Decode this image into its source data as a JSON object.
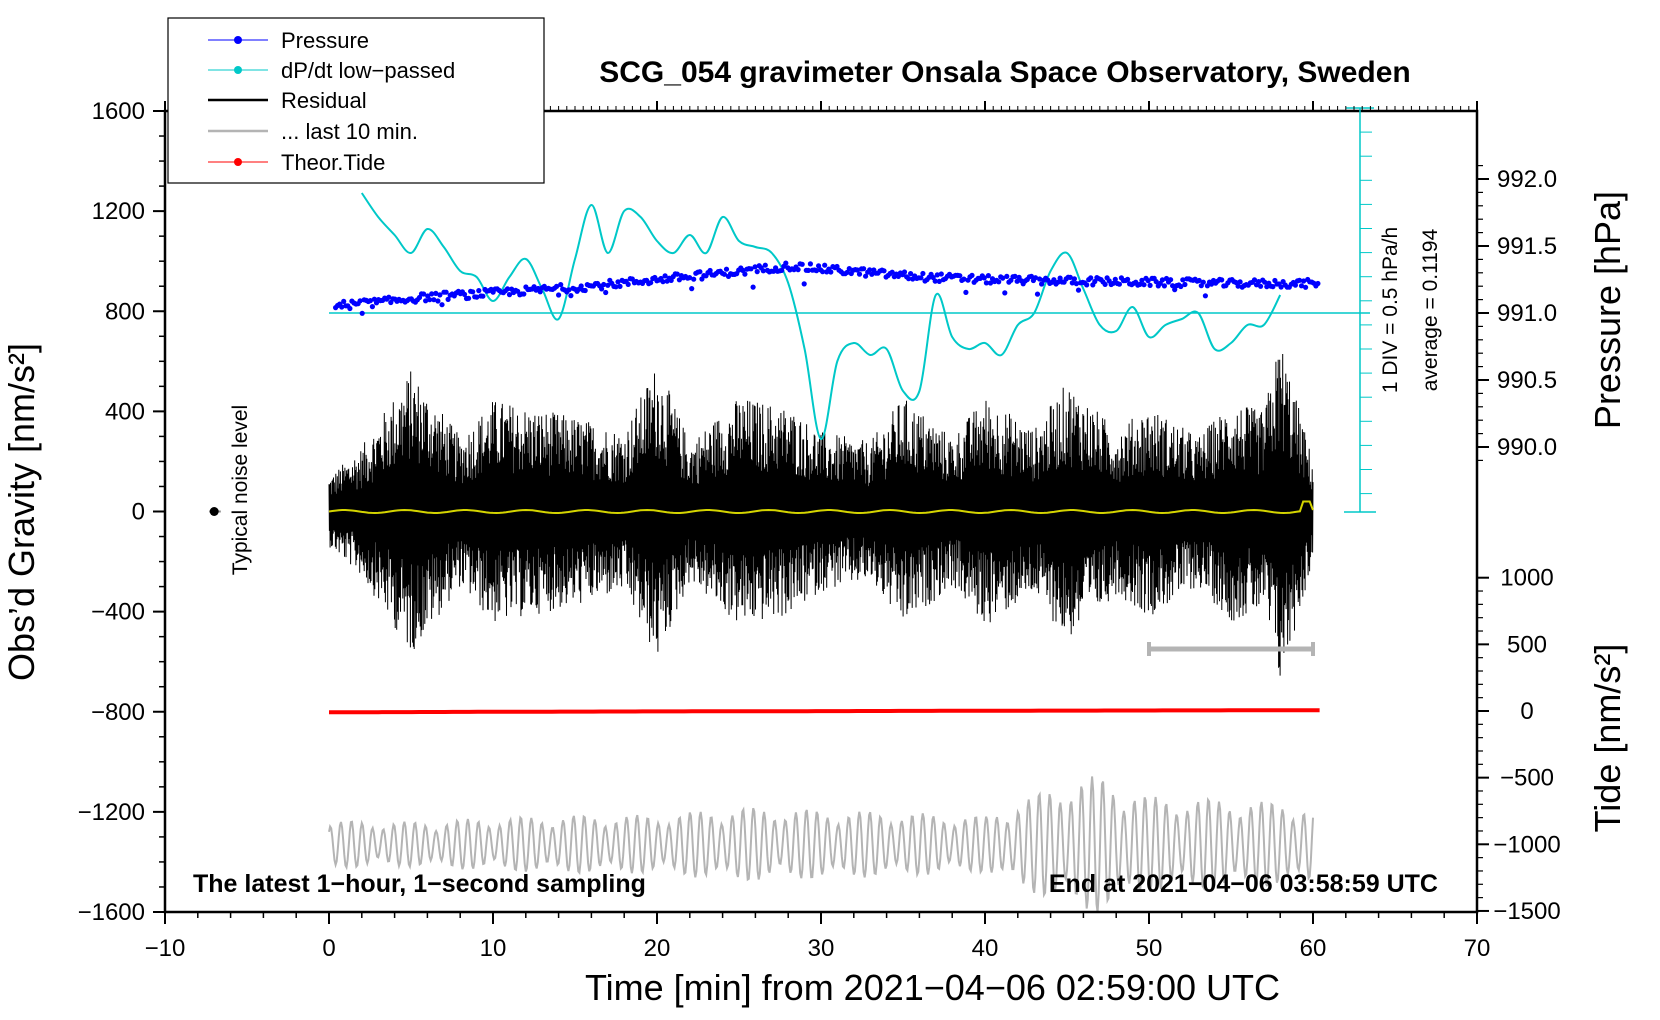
{
  "chart_data": {
    "type": "line",
    "title": "SCG_054 gravimeter Onsala Space Observatory, Sweden",
    "xlabel": "Time [min] from 2021−04−06 02:59:00 UTC",
    "ylabel_left": "Obs’d Gravity [nm/s²]",
    "ylabel_pressure": "Pressure [hPa]",
    "ylabel_tide": "Tide [nm/s²]",
    "xlim": [
      -10,
      70
    ],
    "ylim_left": [
      -1600,
      1600
    ],
    "x_ticks": [
      "−10",
      "0",
      "10",
      "20",
      "30",
      "40",
      "50",
      "60",
      "70"
    ],
    "y_left_ticks": [
      "1600",
      "1200",
      "800",
      "400",
      "0",
      "−400",
      "−800",
      "−1200",
      "−1600"
    ],
    "pressure_ticks": [
      "992.0",
      "991.5",
      "991.0",
      "990.5",
      "990.0"
    ],
    "tide_ticks": [
      "1000",
      "500",
      "0",
      "−500",
      "−1000",
      "−1500"
    ],
    "legend": [
      "Pressure",
      "dP/dt low−passed",
      "Residual",
      "... last 10 min.",
      "Theor.Tide"
    ],
    "notes": {
      "sampling": "The latest 1−hour, 1−second sampling",
      "end_time": "End at 2021−04−06 03:58:59 UTC",
      "noise": "Typical noise level",
      "div": "1 DIV = 0.5 hPa/h",
      "average": "average = 0.1194"
    },
    "series": [
      {
        "name": "Pressure",
        "unit": "hPa",
        "color": "#0000ff",
        "x": [
          0,
          3,
          6,
          10,
          15,
          20,
          25,
          28,
          30,
          33,
          36,
          40,
          45,
          50,
          55,
          60
        ],
        "values": [
          991.05,
          991.08,
          991.12,
          991.15,
          991.19,
          991.25,
          991.31,
          991.35,
          991.33,
          991.3,
          991.27,
          991.25,
          991.24,
          991.23,
          991.22,
          991.22
        ]
      },
      {
        "name": "dP/dt low−passed",
        "unit": "DIV (0.5 hPa/h)",
        "color": "#00c8c8",
        "baseline": 0,
        "x": [
          2,
          3,
          4,
          5,
          6,
          7,
          8,
          9,
          10,
          11,
          12,
          13,
          14,
          15,
          16,
          17,
          18,
          19,
          20,
          21,
          22,
          23,
          24,
          25,
          26,
          27,
          28,
          29,
          30,
          31,
          32,
          33,
          34,
          35,
          36,
          37,
          38,
          39,
          40,
          41,
          42,
          43,
          44,
          45,
          46,
          47,
          48,
          49,
          50,
          51,
          52,
          53,
          54,
          55,
          56,
          57,
          58
        ],
        "values": [
          2.0,
          1.6,
          1.3,
          1.0,
          1.4,
          1.1,
          0.7,
          0.6,
          0.2,
          0.6,
          0.9,
          0.4,
          -0.1,
          0.9,
          1.8,
          1.0,
          1.7,
          1.6,
          1.2,
          1.0,
          1.3,
          1.0,
          1.6,
          1.2,
          1.1,
          1.0,
          0.5,
          -0.6,
          -2.1,
          -0.8,
          -0.5,
          -0.7,
          -0.6,
          -1.3,
          -1.3,
          0.3,
          -0.4,
          -0.6,
          -0.5,
          -0.7,
          -0.2,
          0.0,
          0.7,
          1.0,
          0.4,
          -0.2,
          -0.3,
          0.1,
          -0.4,
          -0.2,
          -0.1,
          0.0,
          -0.6,
          -0.5,
          -0.2,
          -0.2,
          0.3
        ]
      },
      {
        "name": "Residual",
        "unit": "nm/s²",
        "color": "#000000",
        "x": [
          0,
          2,
          5,
          8,
          10,
          12,
          15,
          18,
          20,
          22,
          25,
          28,
          30,
          33,
          35,
          38,
          40,
          43,
          45,
          48,
          50,
          53,
          55,
          57,
          58,
          60
        ],
        "envelope": [
          140,
          260,
          570,
          300,
          450,
          420,
          380,
          320,
          600,
          280,
          460,
          420,
          320,
          280,
          460,
          300,
          460,
          330,
          520,
          330,
          420,
          300,
          440,
          400,
          700,
          200
        ]
      },
      {
        "name": "... last 10 min.",
        "unit": "nm/s²",
        "color": "#b4b4b4",
        "x": [
          0,
          5,
          10,
          15,
          20,
          25,
          30,
          35,
          40,
          45,
          47,
          50,
          55,
          60
        ],
        "envelope": [
          180,
          170,
          200,
          220,
          220,
          280,
          260,
          240,
          210,
          480,
          520,
          360,
          340,
          300
        ]
      },
      {
        "name": "Theor.Tide",
        "unit": "nm/s²",
        "color": "#ff0000",
        "x": [
          0,
          10,
          20,
          30,
          40,
          50,
          60.4
        ],
        "values": [
          -10,
          -6,
          -3,
          -1,
          2,
          4,
          6
        ]
      }
    ]
  }
}
